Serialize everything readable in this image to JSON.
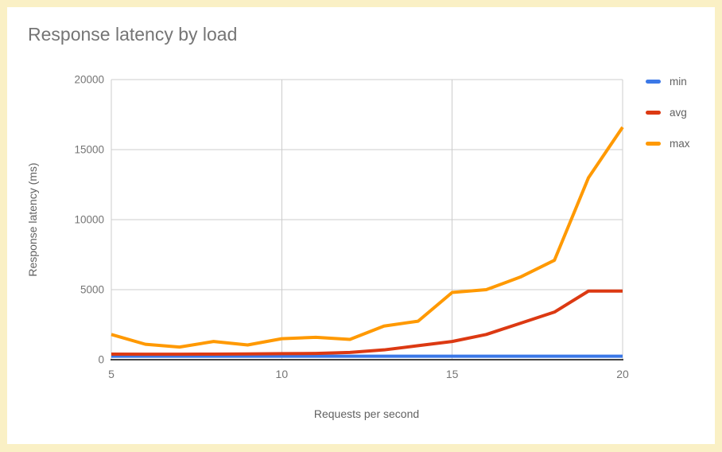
{
  "chart_data": {
    "type": "line",
    "title": "Response latency by load",
    "xlabel": "Requests per second",
    "ylabel": "Response latency (ms)",
    "x": [
      5,
      6,
      7,
      8,
      9,
      10,
      11,
      12,
      13,
      14,
      15,
      16,
      17,
      18,
      19,
      20
    ],
    "series": [
      {
        "name": "min",
        "color": "#3B78E7",
        "values": [
          250,
          250,
          250,
          250,
          250,
          250,
          250,
          250,
          250,
          250,
          250,
          250,
          250,
          250,
          250,
          250
        ]
      },
      {
        "name": "avg",
        "color": "#DC3912",
        "values": [
          400,
          390,
          390,
          400,
          410,
          430,
          450,
          520,
          700,
          1000,
          1300,
          1800,
          2600,
          3400,
          4900,
          4900
        ]
      },
      {
        "name": "max",
        "color": "#FF9900",
        "values": [
          1800,
          1100,
          900,
          1300,
          1050,
          1500,
          1600,
          1450,
          2400,
          2750,
          4800,
          5000,
          5900,
          7100,
          13000,
          16600
        ]
      }
    ],
    "xlim": [
      5,
      20
    ],
    "ylim": [
      0,
      20000
    ],
    "xticks": [
      5,
      10,
      15,
      20
    ],
    "yticks": [
      0,
      5000,
      10000,
      15000,
      20000
    ],
    "grid": true,
    "legend_position": "right"
  },
  "colors": {
    "page_border": "#FAF0C5",
    "card_bg": "#FFFFFF",
    "title_text": "#757575",
    "axis_title_text": "#616161",
    "tick_text": "#757575",
    "gridline": "#CCCCCC",
    "baseline": "#424242"
  }
}
